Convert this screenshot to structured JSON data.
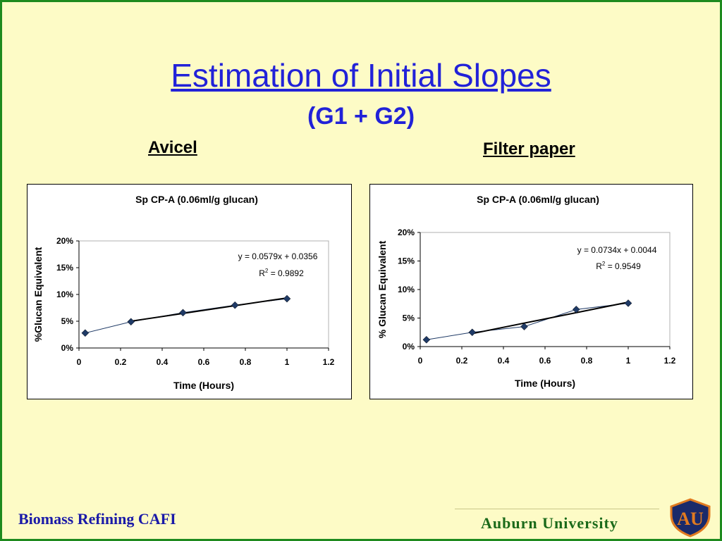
{
  "slide": {
    "title": "Estimation of Initial Slopes",
    "subtitle": "(G1 + G2)",
    "left_label": "Avicel",
    "right_label": "Filter paper",
    "footer_left": "Biomass Refining CAFI",
    "footer_right": "Auburn University",
    "logo_text": "AU"
  },
  "colors": {
    "background": "#fdfbc6",
    "frame": "#1e8a1e",
    "title": "#2222d8",
    "marker": "#1f3a66"
  },
  "chart_data": [
    {
      "type": "scatter",
      "title": "Sp CP-A (0.06ml/g glucan)",
      "xlabel": "Time (Hours)",
      "ylabel": "%Glucan Equivalent",
      "xlim": [
        0,
        1.2
      ],
      "ylim": [
        0,
        0.2
      ],
      "xticks": [
        "0",
        "0.2",
        "0.4",
        "0.6",
        "0.8",
        "1",
        "1.2"
      ],
      "yticks": [
        "0%",
        "5%",
        "10%",
        "15%",
        "20%"
      ],
      "x": [
        0.03,
        0.25,
        0.5,
        0.75,
        1.0
      ],
      "y": [
        0.028,
        0.049,
        0.066,
        0.08,
        0.092
      ],
      "trendline": {
        "slope": 0.0579,
        "intercept": 0.0356,
        "x_start": 0.25,
        "x_end": 1.0
      },
      "equation": "y = 0.0579x + 0.0356",
      "r2": "R2 = 0.9892",
      "grid": false
    },
    {
      "type": "scatter",
      "title": "Sp CP-A (0.06ml/g glucan)",
      "xlabel": "Time (Hours)",
      "ylabel": "% Glucan Equivalent",
      "xlim": [
        0,
        1.2
      ],
      "ylim": [
        0,
        0.2
      ],
      "xticks": [
        "0",
        "0.2",
        "0.4",
        "0.6",
        "0.8",
        "1",
        "1.2"
      ],
      "yticks": [
        "0%",
        "5%",
        "10%",
        "15%",
        "20%"
      ],
      "x": [
        0.03,
        0.25,
        0.5,
        0.75,
        1.0
      ],
      "y": [
        0.012,
        0.025,
        0.035,
        0.065,
        0.076
      ],
      "trendline": {
        "slope": 0.0734,
        "intercept": 0.0044,
        "x_start": 0.25,
        "x_end": 1.0
      },
      "equation": "y = 0.0734x + 0.0044",
      "r2": "R2 = 0.9549",
      "grid": false
    }
  ]
}
